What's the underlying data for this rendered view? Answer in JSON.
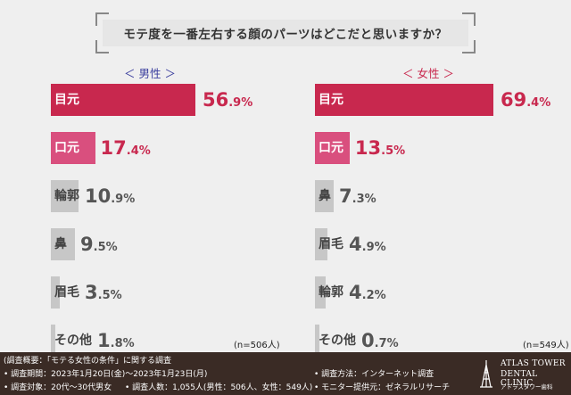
{
  "title": "モテ度を一番左右する顔のパーツはどこだと思いますか？",
  "chart_data": [
    {
      "type": "bar",
      "orientation": "horizontal",
      "title": "＜ 男性 ＞",
      "categories": [
        "目元",
        "口元",
        "輪郭",
        "鼻",
        "眉毛",
        "その他"
      ],
      "values": [
        56.9,
        17.4,
        10.9,
        9.5,
        3.5,
        1.8
      ],
      "value_labels": [
        {
          "int": "56",
          "dec": ".9%"
        },
        {
          "int": "17",
          "dec": ".4%"
        },
        {
          "int": "10",
          "dec": ".9%"
        },
        {
          "int": "9",
          "dec": ".5%"
        },
        {
          "int": "3",
          "dec": ".5%"
        },
        {
          "int": "1",
          "dec": ".8%"
        }
      ],
      "unit": "%",
      "sample_note": "(n=506人)"
    },
    {
      "type": "bar",
      "orientation": "horizontal",
      "title": "＜ 女性 ＞",
      "categories": [
        "目元",
        "口元",
        "鼻",
        "眉毛",
        "輪郭",
        "その他"
      ],
      "values": [
        69.4,
        13.5,
        7.3,
        4.9,
        4.2,
        0.7
      ],
      "value_labels": [
        {
          "int": "69",
          "dec": ".4%"
        },
        {
          "int": "13",
          "dec": ".5%"
        },
        {
          "int": "7",
          "dec": ".3%"
        },
        {
          "int": "4",
          "dec": ".9%"
        },
        {
          "int": "4",
          "dec": ".2%"
        },
        {
          "int": "0",
          "dec": ".7%"
        }
      ],
      "unit": "%",
      "sample_note": "(n=549人)"
    }
  ],
  "colors": {
    "title_male": "#3b3f9e",
    "title_female": "#c8284e",
    "top1": "#c8284e",
    "top2": "#d94f7e",
    "other_bar": "#c7c7c7",
    "other_text": "#555555",
    "footer_bg": "#3a2b25"
  },
  "footer": {
    "overview": "(調査概要：「モテる女性の条件」に関する調査",
    "period": "• 調査期間：2023年1月20日(金)〜2023年1月23日(月)",
    "target": "• 調査対象：20代〜30代男女",
    "respondents": "• 調査人数：1,055人(男性：506人、女性：549人)",
    "method": "• 調査方法：インターネット調査",
    "provider": "• モニター提供元：ゼネラルリサーチ"
  },
  "logo": {
    "line1": "ATLAS TOWER",
    "line2": "DENTAL CLINIC",
    "line3": "アトラスタワー歯科"
  }
}
